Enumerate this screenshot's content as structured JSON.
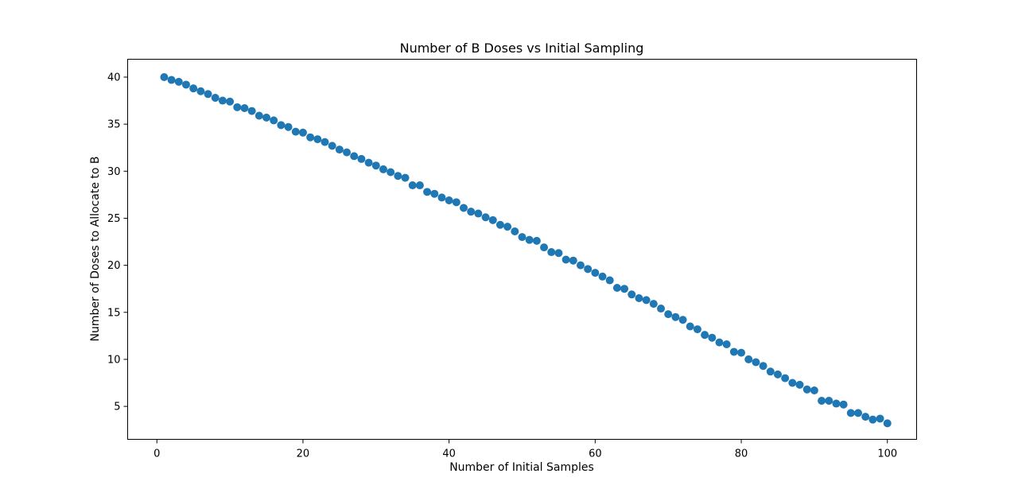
{
  "chart_data": {
    "type": "scatter",
    "title": "Number of B Doses vs Initial Sampling",
    "xlabel": "Number of Initial Samples",
    "ylabel": "Number of Doses to Allocate to B",
    "xlim": [
      -4,
      104
    ],
    "ylim": [
      1.5,
      41.9
    ],
    "xticks": [
      0,
      20,
      40,
      60,
      80,
      100
    ],
    "yticks": [
      5,
      10,
      15,
      20,
      25,
      30,
      35,
      40
    ],
    "grid": false,
    "marker_color": "#1f77b4",
    "series": [
      {
        "x": [
          1,
          2,
          3,
          4,
          5,
          6,
          7,
          8,
          9,
          10,
          11,
          12,
          13,
          14,
          15,
          16,
          17,
          18,
          19,
          20,
          21,
          22,
          23,
          24,
          25,
          26,
          27,
          28,
          29,
          30,
          31,
          32,
          33,
          34,
          35,
          36,
          37,
          38,
          39,
          40,
          41,
          42,
          43,
          44,
          45,
          46,
          47,
          48,
          49,
          50,
          51,
          52,
          53,
          54,
          55,
          56,
          57,
          58,
          59,
          60,
          61,
          62,
          63,
          64,
          65,
          66,
          67,
          68,
          69,
          70,
          71,
          72,
          73,
          74,
          75,
          76,
          77,
          78,
          79,
          80,
          81,
          82,
          83,
          84,
          85,
          86,
          87,
          88,
          89,
          90,
          91,
          92,
          93,
          94,
          95,
          96,
          97,
          98,
          99,
          100
        ],
        "y": [
          40.0,
          39.7,
          39.5,
          39.2,
          38.8,
          38.5,
          38.2,
          37.8,
          37.5,
          37.4,
          36.8,
          36.7,
          36.4,
          35.9,
          35.7,
          35.4,
          34.9,
          34.7,
          34.2,
          34.1,
          33.6,
          33.4,
          33.1,
          32.7,
          32.3,
          32.0,
          31.6,
          31.3,
          30.9,
          30.6,
          30.2,
          29.9,
          29.5,
          29.3,
          28.5,
          28.5,
          27.8,
          27.6,
          27.2,
          26.9,
          26.7,
          26.1,
          25.7,
          25.5,
          25.1,
          24.8,
          24.3,
          24.1,
          23.6,
          23.0,
          22.7,
          22.6,
          21.9,
          21.4,
          21.3,
          20.6,
          20.5,
          20.0,
          19.6,
          19.2,
          18.8,
          18.4,
          17.6,
          17.5,
          16.9,
          16.5,
          16.3,
          15.9,
          15.4,
          14.8,
          14.5,
          14.2,
          13.5,
          13.2,
          12.6,
          12.3,
          11.8,
          11.6,
          10.8,
          10.7,
          10.0,
          9.7,
          9.3,
          8.7,
          8.4,
          8.0,
          7.5,
          7.3,
          6.8,
          6.7,
          5.6,
          5.6,
          5.3,
          5.2,
          4.3,
          4.3,
          3.9,
          3.6,
          3.7,
          3.2
        ]
      }
    ]
  }
}
